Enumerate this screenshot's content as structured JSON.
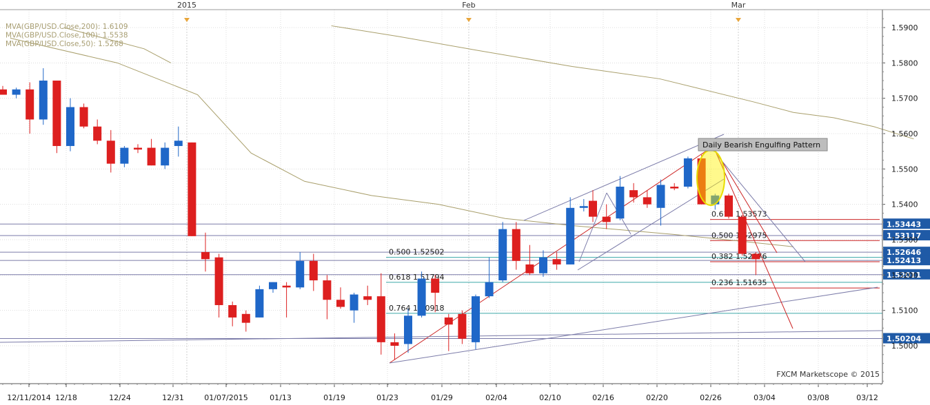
{
  "chart_data": {
    "type": "candlestick",
    "instrument": "GBP/USD",
    "timeframe": "Daily",
    "ylim": [
      1.49,
      1.594
    ],
    "y_ticks": [
      1.5,
      1.51,
      1.52,
      1.53,
      1.54,
      1.55,
      1.56,
      1.57,
      1.58,
      1.59
    ],
    "grid": true,
    "x_tick_labels": [
      "12/11/2014",
      "12/18",
      "12/24",
      "12/31",
      "01/07/2015",
      "01/13",
      "01/19",
      "01/23",
      "01/29",
      "02/04",
      "02/10",
      "02/16",
      "02/20",
      "02/26",
      "03/04",
      "03/08",
      "03/12"
    ],
    "top_markers": [
      "2015",
      "Feb",
      "Mar"
    ],
    "legend": [
      {
        "label": "MVA(GBP/USD.Close,200): 1.6109",
        "color": "#b9af86"
      },
      {
        "label": "MVA(GBP/USD.Close,100): 1.5538",
        "color": "#b9af86"
      },
      {
        "label": "MVA(GBP/USD.Close,50): 1.5268",
        "color": "#b9af86"
      }
    ],
    "candles": [
      {
        "o": 1.5725,
        "h": 1.5735,
        "l": 1.571,
        "c": 1.571
      },
      {
        "o": 1.571,
        "h": 1.573,
        "l": 1.57,
        "c": 1.5725
      },
      {
        "o": 1.5725,
        "h": 1.5745,
        "l": 1.56,
        "c": 1.564
      },
      {
        "o": 1.564,
        "h": 1.5785,
        "l": 1.5625,
        "c": 1.575
      },
      {
        "o": 1.575,
        "h": 1.575,
        "l": 1.5545,
        "c": 1.5565
      },
      {
        "o": 1.5565,
        "h": 1.57,
        "l": 1.555,
        "c": 1.5675
      },
      {
        "o": 1.5675,
        "h": 1.5685,
        "l": 1.5615,
        "c": 1.562
      },
      {
        "o": 1.562,
        "h": 1.564,
        "l": 1.557,
        "c": 1.558
      },
      {
        "o": 1.558,
        "h": 1.561,
        "l": 1.549,
        "c": 1.5515
      },
      {
        "o": 1.5515,
        "h": 1.5565,
        "l": 1.5505,
        "c": 1.556
      },
      {
        "o": 1.556,
        "h": 1.557,
        "l": 1.5545,
        "c": 1.5555
      },
      {
        "o": 1.556,
        "h": 1.5585,
        "l": 1.551,
        "c": 1.551
      },
      {
        "o": 1.551,
        "h": 1.5575,
        "l": 1.55,
        "c": 1.556
      },
      {
        "o": 1.5565,
        "h": 1.562,
        "l": 1.5535,
        "c": 1.558
      },
      {
        "o": 1.5575,
        "h": 1.5575,
        "l": 1.531,
        "c": 1.531
      },
      {
        "o": 1.5265,
        "h": 1.532,
        "l": 1.521,
        "c": 1.5245
      },
      {
        "o": 1.525,
        "h": 1.526,
        "l": 1.508,
        "c": 1.5115
      },
      {
        "o": 1.5115,
        "h": 1.5125,
        "l": 1.5055,
        "c": 1.508
      },
      {
        "o": 1.509,
        "h": 1.51,
        "l": 1.504,
        "c": 1.5065
      },
      {
        "o": 1.508,
        "h": 1.517,
        "l": 1.508,
        "c": 1.516
      },
      {
        "o": 1.516,
        "h": 1.518,
        "l": 1.515,
        "c": 1.518
      },
      {
        "o": 1.517,
        "h": 1.518,
        "l": 1.508,
        "c": 1.5165
      },
      {
        "o": 1.5165,
        "h": 1.5265,
        "l": 1.516,
        "c": 1.524
      },
      {
        "o": 1.524,
        "h": 1.526,
        "l": 1.5155,
        "c": 1.5185
      },
      {
        "o": 1.5185,
        "h": 1.52,
        "l": 1.5075,
        "c": 1.513
      },
      {
        "o": 1.513,
        "h": 1.5165,
        "l": 1.5105,
        "c": 1.511
      },
      {
        "o": 1.51,
        "h": 1.515,
        "l": 1.5065,
        "c": 1.5145
      },
      {
        "o": 1.514,
        "h": 1.517,
        "l": 1.5115,
        "c": 1.513
      },
      {
        "o": 1.514,
        "h": 1.5205,
        "l": 1.4975,
        "c": 1.501
      },
      {
        "o": 1.501,
        "h": 1.5035,
        "l": 1.496,
        "c": 1.5
      },
      {
        "o": 1.5005,
        "h": 1.5105,
        "l": 1.498,
        "c": 1.5085
      },
      {
        "o": 1.5085,
        "h": 1.521,
        "l": 1.508,
        "c": 1.519
      },
      {
        "o": 1.519,
        "h": 1.52,
        "l": 1.5095,
        "c": 1.515
      },
      {
        "o": 1.508,
        "h": 1.509,
        "l": 1.4985,
        "c": 1.506
      },
      {
        "o": 1.509,
        "h": 1.51,
        "l": 1.5005,
        "c": 1.502
      },
      {
        "o": 1.501,
        "h": 1.5145,
        "l": 1.499,
        "c": 1.514
      },
      {
        "o": 1.514,
        "h": 1.525,
        "l": 1.5135,
        "c": 1.518
      },
      {
        "o": 1.5185,
        "h": 1.535,
        "l": 1.518,
        "c": 1.533
      },
      {
        "o": 1.533,
        "h": 1.535,
        "l": 1.5215,
        "c": 1.524
      },
      {
        "o": 1.523,
        "h": 1.5285,
        "l": 1.52,
        "c": 1.5205
      },
      {
        "o": 1.5205,
        "h": 1.527,
        "l": 1.5195,
        "c": 1.525
      },
      {
        "o": 1.5245,
        "h": 1.5265,
        "l": 1.5215,
        "c": 1.523
      },
      {
        "o": 1.523,
        "h": 1.542,
        "l": 1.523,
        "c": 1.539
      },
      {
        "o": 1.539,
        "h": 1.5415,
        "l": 1.538,
        "c": 1.5395
      },
      {
        "o": 1.541,
        "h": 1.544,
        "l": 1.535,
        "c": 1.5365
      },
      {
        "o": 1.5365,
        "h": 1.54,
        "l": 1.533,
        "c": 1.535
      },
      {
        "o": 1.536,
        "h": 1.548,
        "l": 1.5355,
        "c": 1.545
      },
      {
        "o": 1.544,
        "h": 1.546,
        "l": 1.5405,
        "c": 1.542
      },
      {
        "o": 1.542,
        "h": 1.544,
        "l": 1.539,
        "c": 1.54
      },
      {
        "o": 1.539,
        "h": 1.547,
        "l": 1.534,
        "c": 1.5455
      },
      {
        "o": 1.545,
        "h": 1.546,
        "l": 1.544,
        "c": 1.5445
      },
      {
        "o": 1.545,
        "h": 1.5535,
        "l": 1.5445,
        "c": 1.553
      },
      {
        "o": 1.553,
        "h": 1.554,
        "l": 1.54,
        "c": 1.54
      },
      {
        "o": 1.54,
        "h": 1.543,
        "l": 1.5385,
        "c": 1.5425
      },
      {
        "o": 1.5425,
        "h": 1.543,
        "l": 1.536,
        "c": 1.5365
      },
      {
        "o": 1.5365,
        "h": 1.537,
        "l": 1.5255,
        "c": 1.526
      },
      {
        "o": 1.526,
        "h": 1.5265,
        "l": 1.52,
        "c": 1.5245
      }
    ],
    "moving_averages": [
      {
        "name": "MVA200",
        "points": [
          [
            24,
            1.5905
          ],
          [
            29,
            1.5875
          ],
          [
            35,
            1.5835
          ],
          [
            42,
            1.579
          ],
          [
            47,
            1.5755
          ],
          [
            54,
            1.569
          ],
          [
            57,
            1.566
          ],
          [
            60,
            1.5645
          ],
          [
            63,
            1.562
          ],
          [
            66,
            1.5585
          ]
        ]
      },
      {
        "name": "MVA100",
        "points": [
          [
            0,
            1.587
          ],
          [
            8,
            1.58
          ],
          [
            14,
            1.571
          ],
          [
            18,
            1.5545
          ],
          [
            22,
            1.5465
          ],
          [
            27,
            1.5425
          ],
          [
            32,
            1.54
          ],
          [
            37,
            1.536
          ],
          [
            42,
            1.534
          ],
          [
            48,
            1.5315
          ],
          [
            52,
            1.53
          ],
          [
            57,
            1.528
          ]
        ]
      },
      {
        "name": "MVA50",
        "points": [
          [
            4,
            1.59
          ],
          [
            7,
            1.587
          ],
          [
            10,
            1.584
          ],
          [
            12,
            1.58
          ]
        ]
      }
    ],
    "horizontal_levels": [
      {
        "value": 1.53443,
        "label": "1.53443"
      },
      {
        "value": 1.53117,
        "label": "1.53117"
      },
      {
        "value": 1.52646,
        "label": "1.52646"
      },
      {
        "value": 1.52413,
        "label": "1.52413"
      },
      {
        "value": 1.52011,
        "label": "1.52011"
      },
      {
        "value": 1.50204,
        "label": "1.50204"
      }
    ],
    "fib_levels_1": [
      {
        "value": 1.52502,
        "label": "0.500 1.52502"
      },
      {
        "value": 1.51794,
        "label": "0.618 1.51794"
      },
      {
        "value": 1.50918,
        "label": "0.764 1.50918"
      }
    ],
    "fib_levels_2": [
      {
        "value": 1.53573,
        "label": "0.618 1.53573"
      },
      {
        "value": 1.52975,
        "label": "0.500 1.52975"
      },
      {
        "value": 1.52376,
        "label": "0.382 1.52376"
      },
      {
        "value": 1.51635,
        "label": "0.236 1.51635"
      }
    ],
    "annotation": "Daily Bearish Engulfing Pattern",
    "watermark": "FXCM Marketscope © 2015"
  }
}
